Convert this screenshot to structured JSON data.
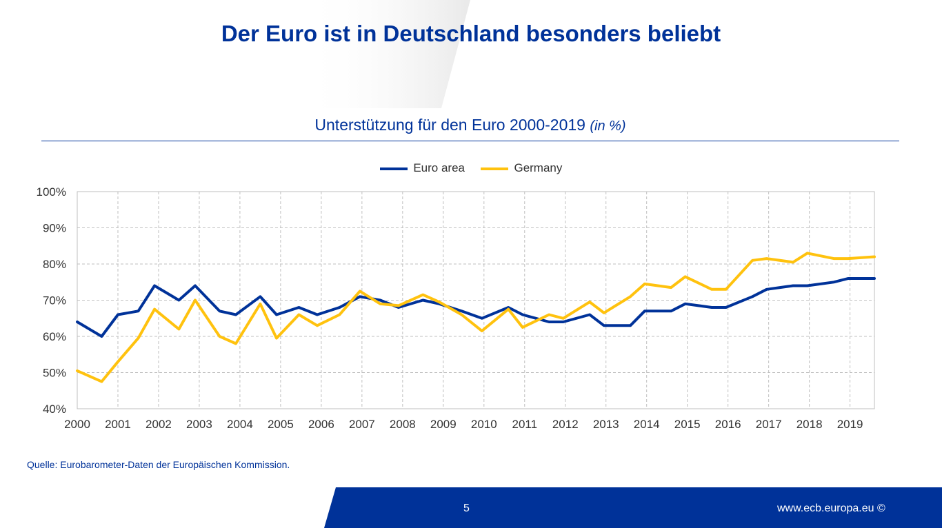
{
  "slide": {
    "title": "Der Euro ist in Deutschland besonders beliebt",
    "source": "Quelle: Eurobarometer-Daten der Europäischen Kommission.",
    "page_number": "5",
    "footer_url": "www.ecb.europa.eu ©"
  },
  "colors": {
    "brand_blue": "#003299",
    "yellow": "#FFC20E",
    "grid": "#bfbfbf"
  },
  "chart_data": {
    "type": "line",
    "title": "Unterstützung für den Euro 2000-2019",
    "title_unit": "(in %)",
    "xlabel": "",
    "ylabel": "",
    "x_tick_labels": [
      "2000",
      "2001",
      "2002",
      "2003",
      "2004",
      "2005",
      "2006",
      "2007",
      "2008",
      "2009",
      "2010",
      "2011",
      "2012",
      "2013",
      "2014",
      "2015",
      "2016",
      "2017",
      "2018",
      "2019"
    ],
    "y_tick_labels": [
      "40%",
      "50%",
      "60%",
      "70%",
      "80%",
      "90%",
      "100%"
    ],
    "ylim": [
      40,
      100
    ],
    "xlim": [
      2000,
      2019.6
    ],
    "grid": true,
    "legend_position": "top-center",
    "x": [
      2000.0,
      2000.6,
      2001.0,
      2001.5,
      2001.9,
      2002.5,
      2002.9,
      2003.5,
      2003.9,
      2004.5,
      2004.9,
      2005.45,
      2005.9,
      2006.45,
      2006.95,
      2007.45,
      2007.9,
      2008.5,
      2008.9,
      2009.45,
      2009.95,
      2010.6,
      2010.95,
      2011.6,
      2011.95,
      2012.6,
      2012.95,
      2013.6,
      2013.95,
      2014.6,
      2014.95,
      2015.6,
      2015.95,
      2016.6,
      2016.95,
      2017.6,
      2017.95,
      2018.6,
      2018.95,
      2019.6
    ],
    "series": [
      {
        "name": "Euro area",
        "color": "#003299",
        "values": [
          64,
          60,
          66,
          67,
          74,
          70,
          74,
          67,
          66,
          71,
          66,
          68,
          66,
          68,
          71,
          70,
          68,
          70,
          69,
          67,
          65,
          68,
          66,
          64,
          64,
          66,
          63,
          63,
          67,
          67,
          69,
          68,
          68,
          71,
          73,
          74,
          74,
          75,
          76,
          76
        ]
      },
      {
        "name": "Germany",
        "color": "#FFC20E",
        "values": [
          50.5,
          47.5,
          53,
          59.5,
          67.5,
          62,
          70,
          60,
          58,
          69,
          59.5,
          66,
          63,
          66,
          72.5,
          69,
          68.5,
          71.5,
          69.5,
          66,
          61.5,
          67.5,
          62.5,
          66,
          65,
          69.5,
          66.5,
          71,
          74.5,
          73.5,
          76.5,
          73,
          73,
          81,
          81.5,
          80.5,
          83,
          81.5,
          81.5,
          82
        ]
      }
    ]
  }
}
